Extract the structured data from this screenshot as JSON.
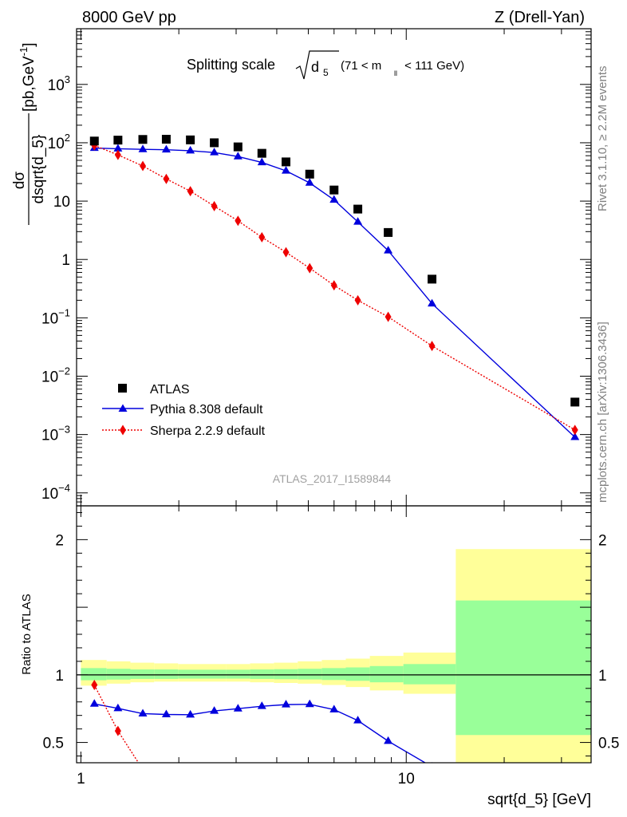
{
  "header": {
    "left": "8000 GeV pp",
    "right": "Z (Drell-Yan)"
  },
  "side_text": {
    "rivet": "Rivet 3.1.10, ≥ 2.2M events",
    "source": "mcplots.cern.ch [arXiv:1306.3436]"
  },
  "analysis_label": "ATLAS_2017_I1589844",
  "colors": {
    "data": "#000000",
    "pythia": "#0000dd",
    "sherpa": "#ee0000",
    "band_inner": "#99ff99",
    "band_outer": "#ffff99"
  },
  "chart_data": [
    {
      "type": "scatter",
      "panel": "main",
      "title": "Splitting scale √d5 (71 < m_ll < 111 GeV)",
      "title_parts": {
        "main": "Splitting scale",
        "symbol": "d",
        "sub": "5",
        "range_pre": "(71 < m",
        "range_sub": "ll",
        "range_post": " < 111 GeV)"
      },
      "ylabel": "dσ/dsqrt{d_5} [pb,GeV⁻¹]",
      "ylabel_parts": {
        "num": "dσ",
        "den": "dsqrt{d_5}",
        "unit_pre": "[pb,GeV",
        "unit_sup": "-1",
        "unit_post": "]"
      },
      "x_scale": "log",
      "y_scale": "log",
      "xlim": [
        0.97,
        37
      ],
      "ylim": [
        6e-05,
        9000
      ],
      "y_ticks": [
        {
          "v": 0.0001,
          "base": "10",
          "exp": "−4"
        },
        {
          "v": 0.001,
          "base": "10",
          "exp": "−3"
        },
        {
          "v": 0.01,
          "base": "10",
          "exp": "−2"
        },
        {
          "v": 0.1,
          "base": "10",
          "exp": "−1"
        },
        {
          "v": 1,
          "base": "1",
          "exp": ""
        },
        {
          "v": 10,
          "base": "10",
          "exp": ""
        },
        {
          "v": 100,
          "base": "10",
          "exp": "2"
        },
        {
          "v": 1000,
          "base": "10",
          "exp": "3"
        }
      ],
      "legend": {
        "position": "bottom-left",
        "entries": [
          "ATLAS",
          "Pythia 8.308 default",
          "Sherpa 2.2.9 default"
        ]
      },
      "series": [
        {
          "name": "ATLAS",
          "style": "square",
          "x": [
            1.1,
            1.3,
            1.55,
            1.83,
            2.17,
            2.57,
            3.04,
            3.6,
            4.27,
            5.05,
            6.0,
            7.1,
            8.8,
            12.0,
            33.0
          ],
          "values": [
            107,
            111,
            114,
            115,
            112,
            100,
            85,
            66,
            47,
            29,
            15.5,
            7.3,
            2.9,
            0.46,
            0.0036
          ]
        },
        {
          "name": "Pythia 8.308 default",
          "style": "triangle-line",
          "x": [
            1.1,
            1.3,
            1.55,
            1.83,
            2.17,
            2.57,
            3.04,
            3.6,
            4.27,
            5.05,
            6.0,
            7.1,
            8.8,
            12.0,
            33.0
          ],
          "values": [
            81,
            79,
            77,
            76,
            73,
            68,
            58,
            46,
            33,
            20.5,
            10.5,
            4.4,
            1.42,
            0.175,
            0.0009
          ]
        },
        {
          "name": "Sherpa 2.2.9 default",
          "style": "diamond-dotted",
          "x": [
            1.1,
            1.3,
            1.55,
            1.83,
            2.17,
            2.57,
            3.04,
            3.6,
            4.27,
            5.05,
            6.0,
            7.1,
            8.8,
            12.0,
            33.0
          ],
          "values": [
            90,
            62,
            40,
            24,
            14.8,
            8.2,
            4.6,
            2.4,
            1.33,
            0.71,
            0.36,
            0.2,
            0.104,
            0.033,
            0.0012
          ]
        }
      ]
    },
    {
      "type": "scatter",
      "panel": "ratio",
      "ylabel": "Ratio to ATLAS",
      "xlabel": "sqrt{d_5} [GeV]",
      "x_scale": "log",
      "xlim": [
        0.97,
        37
      ],
      "ylim": [
        0.35,
        2.25
      ],
      "y_ticks": [
        {
          "v": 0.5,
          "label": "0.5"
        },
        {
          "v": 1,
          "label": "1"
        },
        {
          "v": 2,
          "label": "2"
        }
      ],
      "x_ticks": [
        {
          "v": 1,
          "label": "1"
        },
        {
          "v": 10,
          "label": "10"
        }
      ],
      "uncertainty_bands": [
        {
          "x0": 1.0,
          "x1": 1.2,
          "inner": [
            0.96,
            1.05
          ],
          "outer": [
            0.92,
            1.11
          ]
        },
        {
          "x0": 1.2,
          "x1": 1.42,
          "inner": [
            0.965,
            1.045
          ],
          "outer": [
            0.935,
            1.1
          ]
        },
        {
          "x0": 1.42,
          "x1": 1.68,
          "inner": [
            0.97,
            1.04
          ],
          "outer": [
            0.945,
            1.09
          ]
        },
        {
          "x0": 1.68,
          "x1": 1.99,
          "inner": [
            0.97,
            1.04
          ],
          "outer": [
            0.95,
            1.085
          ]
        },
        {
          "x0": 1.99,
          "x1": 2.36,
          "inner": [
            0.972,
            1.038
          ],
          "outer": [
            0.95,
            1.08
          ]
        },
        {
          "x0": 2.36,
          "x1": 2.79,
          "inner": [
            0.972,
            1.038
          ],
          "outer": [
            0.95,
            1.08
          ]
        },
        {
          "x0": 2.79,
          "x1": 3.31,
          "inner": [
            0.972,
            1.038
          ],
          "outer": [
            0.95,
            1.08
          ]
        },
        {
          "x0": 3.31,
          "x1": 3.92,
          "inner": [
            0.97,
            1.04
          ],
          "outer": [
            0.945,
            1.085
          ]
        },
        {
          "x0": 3.92,
          "x1": 4.64,
          "inner": [
            0.968,
            1.042
          ],
          "outer": [
            0.94,
            1.09
          ]
        },
        {
          "x0": 4.64,
          "x1": 5.5,
          "inner": [
            0.966,
            1.045
          ],
          "outer": [
            0.935,
            1.1
          ]
        },
        {
          "x0": 5.5,
          "x1": 6.52,
          "inner": [
            0.962,
            1.05
          ],
          "outer": [
            0.925,
            1.11
          ]
        },
        {
          "x0": 6.52,
          "x1": 7.73,
          "inner": [
            0.956,
            1.055
          ],
          "outer": [
            0.91,
            1.12
          ]
        },
        {
          "x0": 7.73,
          "x1": 9.8,
          "inner": [
            0.945,
            1.065
          ],
          "outer": [
            0.885,
            1.14
          ]
        },
        {
          "x0": 9.8,
          "x1": 14.2,
          "inner": [
            0.93,
            1.08
          ],
          "outer": [
            0.86,
            1.165
          ]
        },
        {
          "x0": 14.2,
          "x1": 37,
          "inner": [
            0.555,
            1.55
          ],
          "outer": [
            0.35,
            1.93
          ]
        }
      ],
      "series": [
        {
          "name": "Pythia 8.308 default",
          "style": "triangle-line",
          "x": [
            1.1,
            1.3,
            1.55,
            1.83,
            2.17,
            2.57,
            3.04,
            3.6,
            4.27,
            5.05,
            6.0,
            7.1,
            8.8,
            12.0
          ],
          "values": [
            0.785,
            0.752,
            0.713,
            0.707,
            0.705,
            0.733,
            0.75,
            0.768,
            0.78,
            0.782,
            0.743,
            0.662,
            0.51,
            0.32
          ]
        },
        {
          "name": "Sherpa 2.2.9 default",
          "style": "diamond-dotted",
          "x": [
            1.1,
            1.3,
            1.55
          ],
          "values": [
            0.925,
            0.585,
            0.3
          ]
        }
      ]
    }
  ]
}
